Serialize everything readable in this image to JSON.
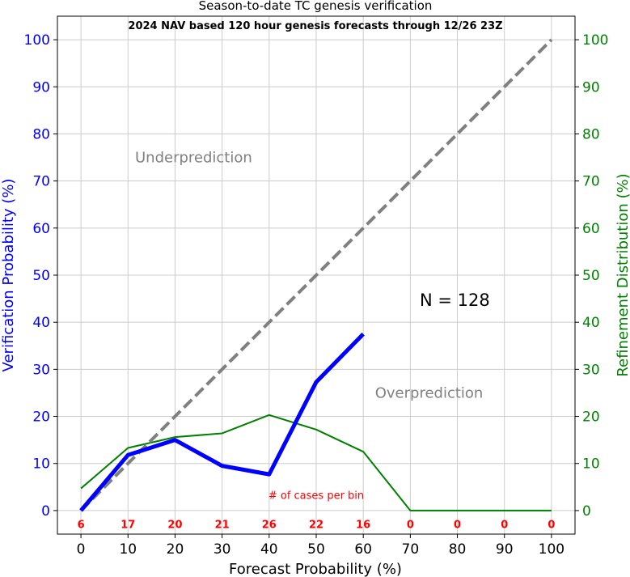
{
  "colors": {
    "verification": "#0000ff",
    "refinement": "#008000",
    "perfect": "#808080",
    "counts": "#ff0000",
    "annotation": "#808080",
    "grid": "#cccccc",
    "axis": "#000000"
  },
  "chart_data": {
    "type": "line",
    "title": "Season-to-date TC genesis verification",
    "subtitle": "2024 NAV based 120 hour genesis forecasts through 12/26 23Z",
    "xlabel": "Forecast Probability (%)",
    "ylabel": "Verification Probability (%)",
    "y2label": "Refinement Distribution (%)",
    "xlim": [
      -5,
      105
    ],
    "ylim": [
      -5,
      105
    ],
    "y2lim": [
      -5,
      105
    ],
    "grid": true,
    "x_ticks": [
      "0",
      "10",
      "20",
      "30",
      "40",
      "50",
      "60",
      "70",
      "80",
      "90",
      "100"
    ],
    "y_ticks": [
      "0",
      "10",
      "20",
      "30",
      "40",
      "50",
      "60",
      "70",
      "80",
      "90",
      "100"
    ],
    "y2_ticks": [
      "0",
      "10",
      "20",
      "30",
      "40",
      "50",
      "60",
      "70",
      "80",
      "90",
      "100"
    ],
    "series": [
      {
        "name": "",
        "axis": "left",
        "color": "#0000ff",
        "style": "solid-thick",
        "x": [
          0,
          10,
          20,
          30,
          40,
          50,
          60
        ],
        "y": [
          0,
          11.8,
          15.0,
          9.5,
          7.7,
          27.3,
          37.5
        ]
      },
      {
        "name": "",
        "axis": "right",
        "color": "#008000",
        "style": "solid",
        "x": [
          0,
          10,
          20,
          30,
          40,
          50,
          60,
          70,
          80,
          90,
          100
        ],
        "y": [
          4.7,
          13.3,
          15.6,
          16.4,
          20.3,
          17.2,
          12.5,
          0,
          0,
          0,
          0
        ]
      },
      {
        "name": "",
        "axis": "left",
        "color": "#808080",
        "style": "dashed",
        "x": [
          0,
          100
        ],
        "y": [
          0,
          100
        ]
      }
    ],
    "annotations": {
      "underprediction": {
        "text": "Underprediction",
        "x": 11.5,
        "y": 74
      },
      "overprediction": {
        "text": "Overprediction",
        "x": 62.5,
        "y": 24
      },
      "n_total": {
        "text": "N = 128",
        "x": 72,
        "y": 43.5
      },
      "cases_label": {
        "text": "# of cases per bin",
        "x": 50,
        "y": 2.5
      }
    },
    "case_counts": {
      "x": [
        0,
        10,
        20,
        30,
        40,
        50,
        60,
        70,
        80,
        90,
        100
      ],
      "values": [
        "6",
        "17",
        "20",
        "21",
        "26",
        "22",
        "16",
        "0",
        "0",
        "0",
        "0"
      ],
      "y": -3
    }
  }
}
